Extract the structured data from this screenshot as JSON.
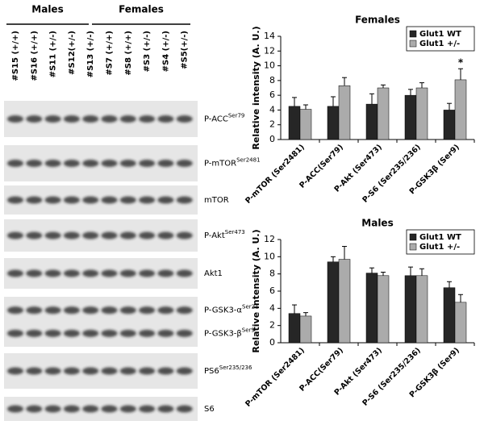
{
  "blot": {
    "groups": [
      "Males",
      "Females"
    ],
    "lanes": [
      "#S15 (+/+)",
      "#S16 (+/+)",
      "#S11 (+/-)",
      "#S12(+/-)",
      "#S13 (+/-)",
      "#S7 (+/+)",
      "#S8 (+/+)",
      "#S3 (+/-)",
      "#S4 (+/-)",
      "#S5(+/-)"
    ],
    "rows": [
      {
        "labels": [
          {
            "name": "P-ACC",
            "sup": "Ser79"
          }
        ]
      },
      {
        "labels": [
          {
            "name": "P-mTOR",
            "sup": "Ser2481"
          }
        ]
      },
      {
        "labels": [
          {
            "name": "mTOR"
          }
        ]
      },
      {
        "labels": [
          {
            "name": "P-Akt",
            "sup": "Ser473"
          }
        ]
      },
      {
        "labels": [
          {
            "name": "Akt1"
          }
        ]
      },
      {
        "labels": [
          {
            "name": "P-GSK3-α",
            "sup": "Ser21"
          },
          {
            "name": "P-GSK3-β",
            "sup": "Ser9"
          }
        ]
      },
      {
        "labels": [
          {
            "name": "PS6",
            "sup": "Ser235/236"
          }
        ]
      },
      {
        "labels": [
          {
            "name": "S6"
          }
        ]
      }
    ]
  },
  "chart_data": [
    {
      "type": "bar",
      "title": "Females",
      "y_label": "Relative intensity (A. U.)",
      "categories": [
        "P-mTOR (Ser2481)",
        "P-ACC(Ser79)",
        "P-Akt (Ser473)",
        "P-S6 (Ser235/236)",
        "P-GSK3β (Ser9)"
      ],
      "series": [
        {
          "name": "Glut1 WT",
          "color": "#262626",
          "values": [
            4.5,
            4.5,
            4.8,
            6.0,
            4.0
          ],
          "errors": [
            1.2,
            1.3,
            1.4,
            0.8,
            0.9
          ]
        },
        {
          "name": "Glut1 +/-",
          "color": "#ababab",
          "values": [
            4.1,
            7.3,
            7.0,
            7.0,
            8.1
          ],
          "errors": [
            0.6,
            1.1,
            0.4,
            0.7,
            1.5
          ]
        }
      ],
      "annotation": "*",
      "ylim": [
        0,
        14
      ],
      "yticks": [
        0,
        2,
        4,
        6,
        8,
        10,
        12,
        14
      ],
      "legend": "upper right"
    },
    {
      "type": "bar",
      "title": "Males",
      "y_label": "Relative intensity (A. U.)",
      "categories": [
        "P-mTOR (Ser2481)",
        "P-ACC(Ser79)",
        "P-Akt (Ser473)",
        "P-S6 (Ser235/236)",
        "P-GSK3β (Ser9)"
      ],
      "series": [
        {
          "name": "Glut1 WT",
          "color": "#262626",
          "values": [
            3.4,
            9.4,
            8.1,
            7.8,
            6.4
          ],
          "errors": [
            1.0,
            0.6,
            0.6,
            1.0,
            0.7
          ]
        },
        {
          "name": "Glut1 +/-",
          "color": "#ababab",
          "values": [
            3.1,
            9.7,
            7.8,
            7.8,
            4.7
          ],
          "errors": [
            0.4,
            1.5,
            0.4,
            0.8,
            0.9
          ]
        }
      ],
      "ylim": [
        0,
        12
      ],
      "yticks": [
        0,
        2,
        4,
        6,
        8,
        10,
        12
      ],
      "legend": "upper right"
    }
  ]
}
